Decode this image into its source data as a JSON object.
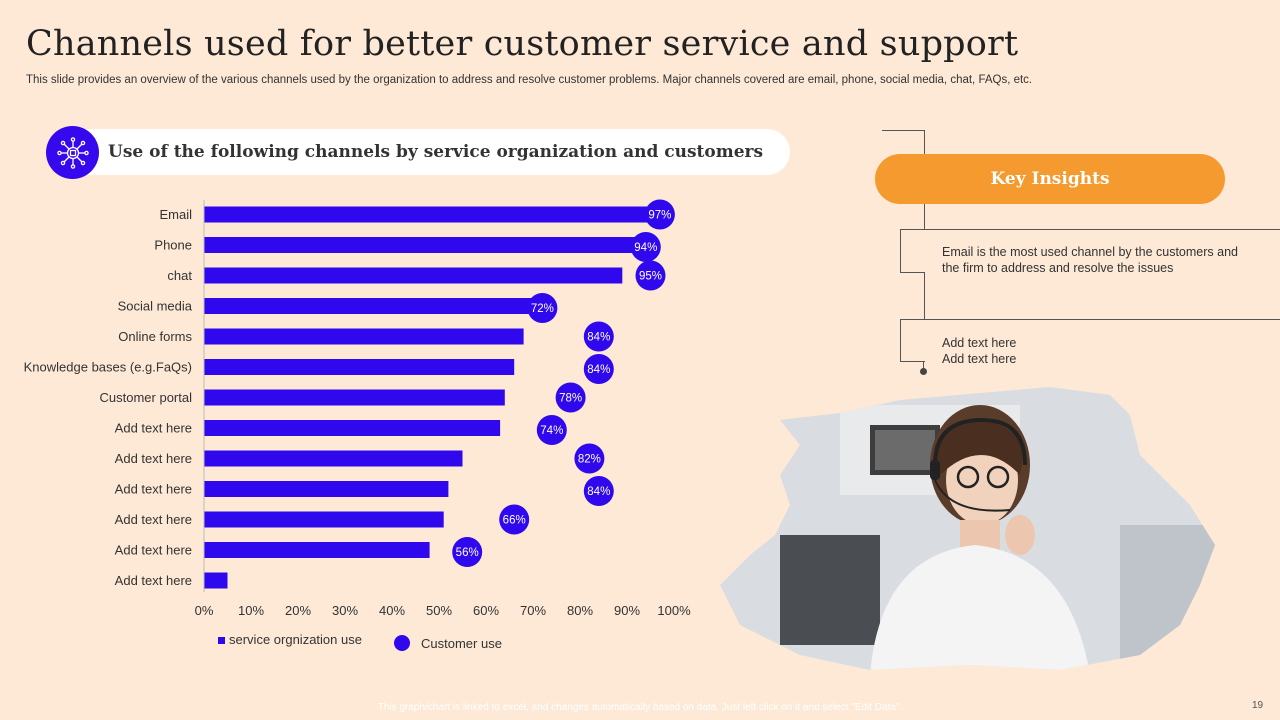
{
  "title": "Channels used for better customer service and support",
  "subtitle": "This slide provides an overview of the various channels used by the organization to address and resolve customer problems. Major channels covered are email, phone, social media, chat, FAQs,  etc.",
  "section_heading": "Use of the following channels by service organization and customers",
  "key_insights": {
    "heading": "Key Insights",
    "insight1": "Email is the most used channel by the customers and the firm to address and resolve the issues",
    "insight2_line1": "Add text here",
    "insight2_line2": "Add text here"
  },
  "footer": "This graph/chart is linked to excel, and changes automatically based on data. Just left click on it and select \"Edit Data\".",
  "page_number": "19",
  "colors": {
    "bar": "#2f08ee",
    "accent": "#f59a2e",
    "background": "#fde9d6"
  },
  "chart_data": {
    "type": "bar",
    "orientation": "horizontal",
    "categories": [
      "Email",
      "Phone",
      "chat",
      "Social media",
      "Online forms",
      "Knowledge bases (e.g.FaQs)",
      "Customer portal",
      "Add text here",
      "Add text here",
      "Add text here",
      "Add text here",
      "Add text here",
      "Add text here"
    ],
    "series": [
      {
        "name": "service orgnization use",
        "values": [
          95,
          95,
          89,
          72,
          68,
          66,
          64,
          63,
          55,
          52,
          51,
          48,
          5
        ]
      },
      {
        "name": "Customer use",
        "values": [
          97,
          94,
          95,
          72,
          84,
          84,
          78,
          74,
          82,
          84,
          66,
          56,
          null
        ],
        "labels": [
          "97%",
          "94%",
          "95%",
          "72%",
          "84%",
          "84%",
          "78%",
          "74%",
          "82%",
          "84%",
          "66%",
          "56%",
          ""
        ]
      }
    ],
    "xlim": [
      0,
      100
    ],
    "xticks": [
      "0%",
      "10%",
      "20%",
      "30%",
      "40%",
      "50%",
      "60%",
      "70%",
      "80%",
      "90%",
      "100%"
    ],
    "legend": "bottom"
  }
}
